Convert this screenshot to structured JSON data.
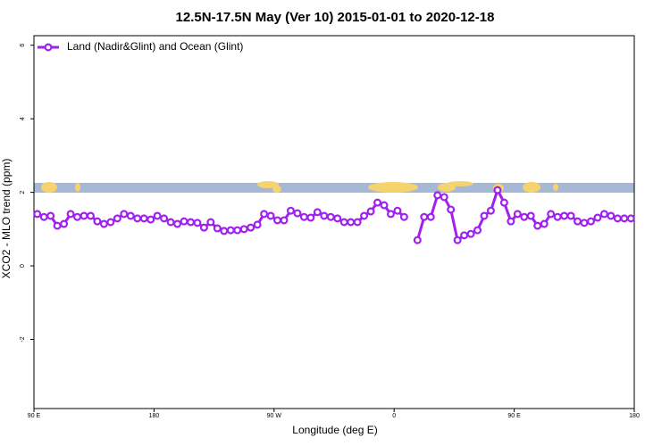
{
  "chart_data": {
    "type": "line",
    "title": "12.5N-17.5N May (Ver 10)   2015-01-01 to 2020-12-18",
    "x_label": "Longitude (deg E)",
    "y_label": "XCO2 - MLO trend (ppm)",
    "xlim": [
      90,
      540
    ],
    "xticks": [
      {
        "value": 90,
        "label": "90 E"
      },
      180,
      {
        "value": 270,
        "label": "90 W"
      },
      {
        "value": 360,
        "label": "0"
      },
      {
        "value": 450,
        "label": "90 E"
      },
      {
        "value": 540,
        "label": "180"
      }
    ],
    "ylim": [
      -3.88,
      6.26
    ],
    "yticks": [
      -2,
      0,
      2,
      4,
      6
    ],
    "legend": "top-left",
    "x": [
      92.5,
      97.5,
      102.5,
      107.5,
      112.5,
      117.5,
      122.5,
      127.5,
      132.5,
      137.5,
      142.5,
      147.5,
      152.5,
      157.5,
      162.5,
      167.5,
      172.5,
      177.5,
      182.5,
      187.5,
      192.5,
      197.5,
      202.5,
      207.5,
      212.5,
      217.5,
      222.5,
      227.5,
      232.5,
      237.5,
      242.5,
      247.5,
      252.5,
      257.5,
      262.5,
      267.5,
      272.5,
      277.5,
      282.5,
      287.5,
      292.5,
      297.5,
      302.5,
      307.5,
      312.5,
      317.5,
      322.5,
      327.5,
      332.5,
      337.5,
      342.5,
      347.5,
      352.5,
      357.5,
      362.5,
      367.5,
      372.5,
      377.5,
      382.5,
      387.5,
      392.5,
      397.5,
      402.5,
      407.5,
      412.5,
      417.5,
      422.5,
      427.5,
      432.5,
      437.5,
      442.5,
      447.5,
      452.5,
      457.5,
      462.5,
      467.5,
      472.5,
      477.5,
      482.5,
      487.5,
      492.5,
      497.5,
      502.5,
      507.5,
      512.5,
      517.5,
      522.5,
      527.5,
      532.5,
      537.5
    ],
    "series": [
      {
        "name": "Land (Nadir&Glint) and Ocean (Glint)",
        "color": "#a020f0",
        "values": [
          1.41,
          1.33,
          1.36,
          1.09,
          1.14,
          1.41,
          1.33,
          1.36,
          1.36,
          1.21,
          1.14,
          1.19,
          1.29,
          1.41,
          1.36,
          1.29,
          1.29,
          1.26,
          1.36,
          1.29,
          1.19,
          1.14,
          1.21,
          1.19,
          1.17,
          1.04,
          1.19,
          1.02,
          0.95,
          0.97,
          0.97,
          1.0,
          1.04,
          1.12,
          1.41,
          1.36,
          1.24,
          1.24,
          1.5,
          1.43,
          1.33,
          1.31,
          1.46,
          1.36,
          1.33,
          1.29,
          1.19,
          1.19,
          1.19,
          1.36,
          1.48,
          1.72,
          1.65,
          1.41,
          1.5,
          1.33,
          null,
          0.7,
          1.33,
          1.33,
          1.92,
          1.87,
          1.53,
          0.7,
          0.83,
          0.87,
          0.97,
          1.36,
          1.5,
          2.06,
          1.72,
          1.21,
          1.41,
          1.33,
          1.36,
          1.09,
          1.14,
          1.41,
          1.33,
          1.36,
          1.36,
          1.21,
          1.17,
          1.21,
          1.31,
          1.41,
          1.36,
          1.29,
          1.29,
          1.29
        ]
      }
    ]
  }
}
